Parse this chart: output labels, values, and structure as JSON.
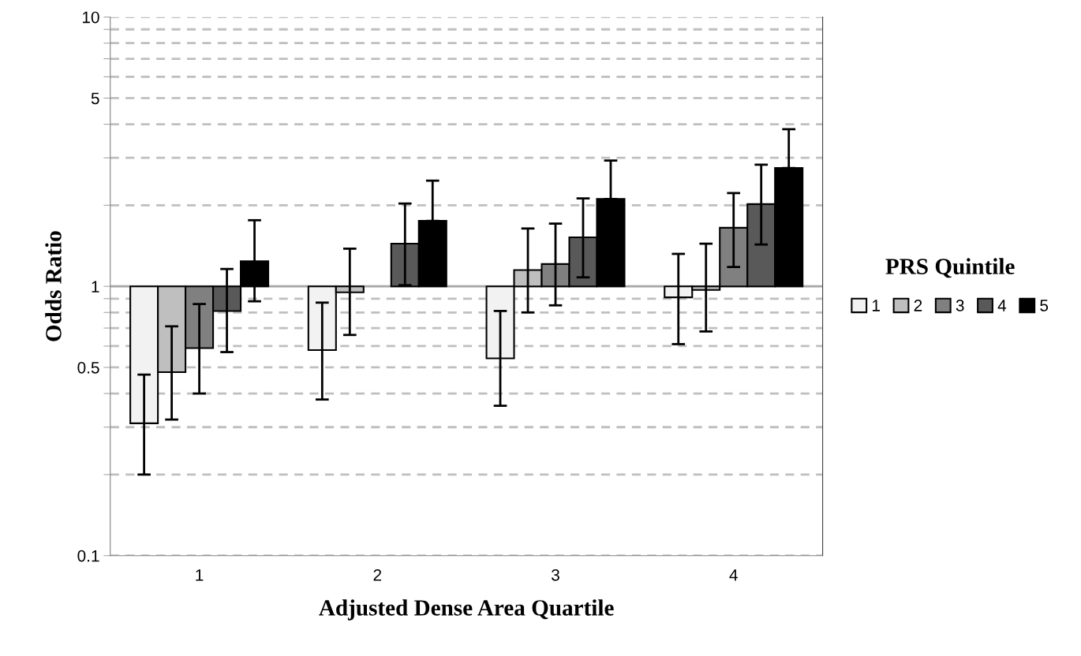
{
  "chart_data": {
    "type": "bar",
    "xlabel": "Adjusted Dense Area Quartile",
    "ylabel": "Odds Ratio",
    "legend_title": "PRS Quintile",
    "categories": [
      "1",
      "2",
      "3",
      "4"
    ],
    "series": [
      {
        "name": "1",
        "color": "#f2f2f2",
        "base": [
          1,
          1,
          1,
          1
        ],
        "values": [
          -0.69,
          -0.42,
          -0.46,
          -0.09
        ],
        "errors": [
          [
            0.2,
            0.47
          ],
          [
            0.38,
            0.87
          ],
          [
            0.36,
            0.81
          ],
          [
            0.61,
            1.32
          ]
        ]
      },
      {
        "name": "2",
        "color": "#bfbfbf",
        "base": [
          1,
          1,
          1,
          1
        ],
        "values": [
          -0.52,
          -0.05,
          0.15,
          -0.03
        ],
        "errors": [
          [
            0.32,
            0.71
          ],
          [
            0.66,
            1.38
          ],
          [
            0.8,
            1.64
          ],
          [
            0.68,
            1.44
          ]
        ]
      },
      {
        "name": "3",
        "color": "#808080",
        "base": [
          1,
          null,
          1,
          1
        ],
        "values": [
          -0.41,
          null,
          0.21,
          0.65
        ],
        "errors": [
          [
            0.4,
            0.86
          ],
          null,
          [
            0.85,
            1.71
          ],
          [
            1.18,
            2.22
          ]
        ]
      },
      {
        "name": "4",
        "color": "#595959",
        "base": [
          1,
          1,
          1,
          1
        ],
        "values": [
          -0.19,
          0.44,
          0.52,
          1.02
        ],
        "errors": [
          [
            0.57,
            1.16
          ],
          [
            1.01,
            2.03
          ],
          [
            1.08,
            2.12
          ],
          [
            1.43,
            2.83
          ]
        ]
      },
      {
        "name": "5",
        "color": "#000000",
        "base": [
          1,
          1,
          1,
          1
        ],
        "values": [
          0.24,
          0.75,
          1.11,
          1.75
        ],
        "errors": [
          [
            0.88,
            1.76
          ],
          [
            1.75,
            2.47
          ],
          [
            2.11,
            2.93
          ],
          [
            2.75,
            3.83
          ]
        ]
      }
    ],
    "log": "y",
    "ylim": [
      0.1,
      10
    ],
    "yticks": [
      0.1,
      {
        "value": 0.2,
        "label": null
      },
      {
        "value": 0.3,
        "label": null
      },
      {
        "value": 0.4,
        "label": null
      },
      0.5,
      {
        "value": 0.6,
        "label": null
      },
      {
        "value": 0.7,
        "label": null
      },
      {
        "value": 0.8,
        "label": null
      },
      {
        "value": 0.9,
        "label": null
      },
      1,
      {
        "value": 2,
        "label": null
      },
      {
        "value": 3,
        "label": null
      },
      {
        "value": 4,
        "label": null
      },
      5,
      {
        "value": 6,
        "label": null
      },
      {
        "value": 7,
        "label": null
      },
      {
        "value": 8,
        "label": null
      },
      {
        "value": 9,
        "label": null
      },
      10
    ],
    "ref_lines": [
      {
        "axis": "y",
        "value": 1,
        "color": "#a6a6a6",
        "line_style": "solid"
      }
    ],
    "grid": "y",
    "legend": "right"
  }
}
